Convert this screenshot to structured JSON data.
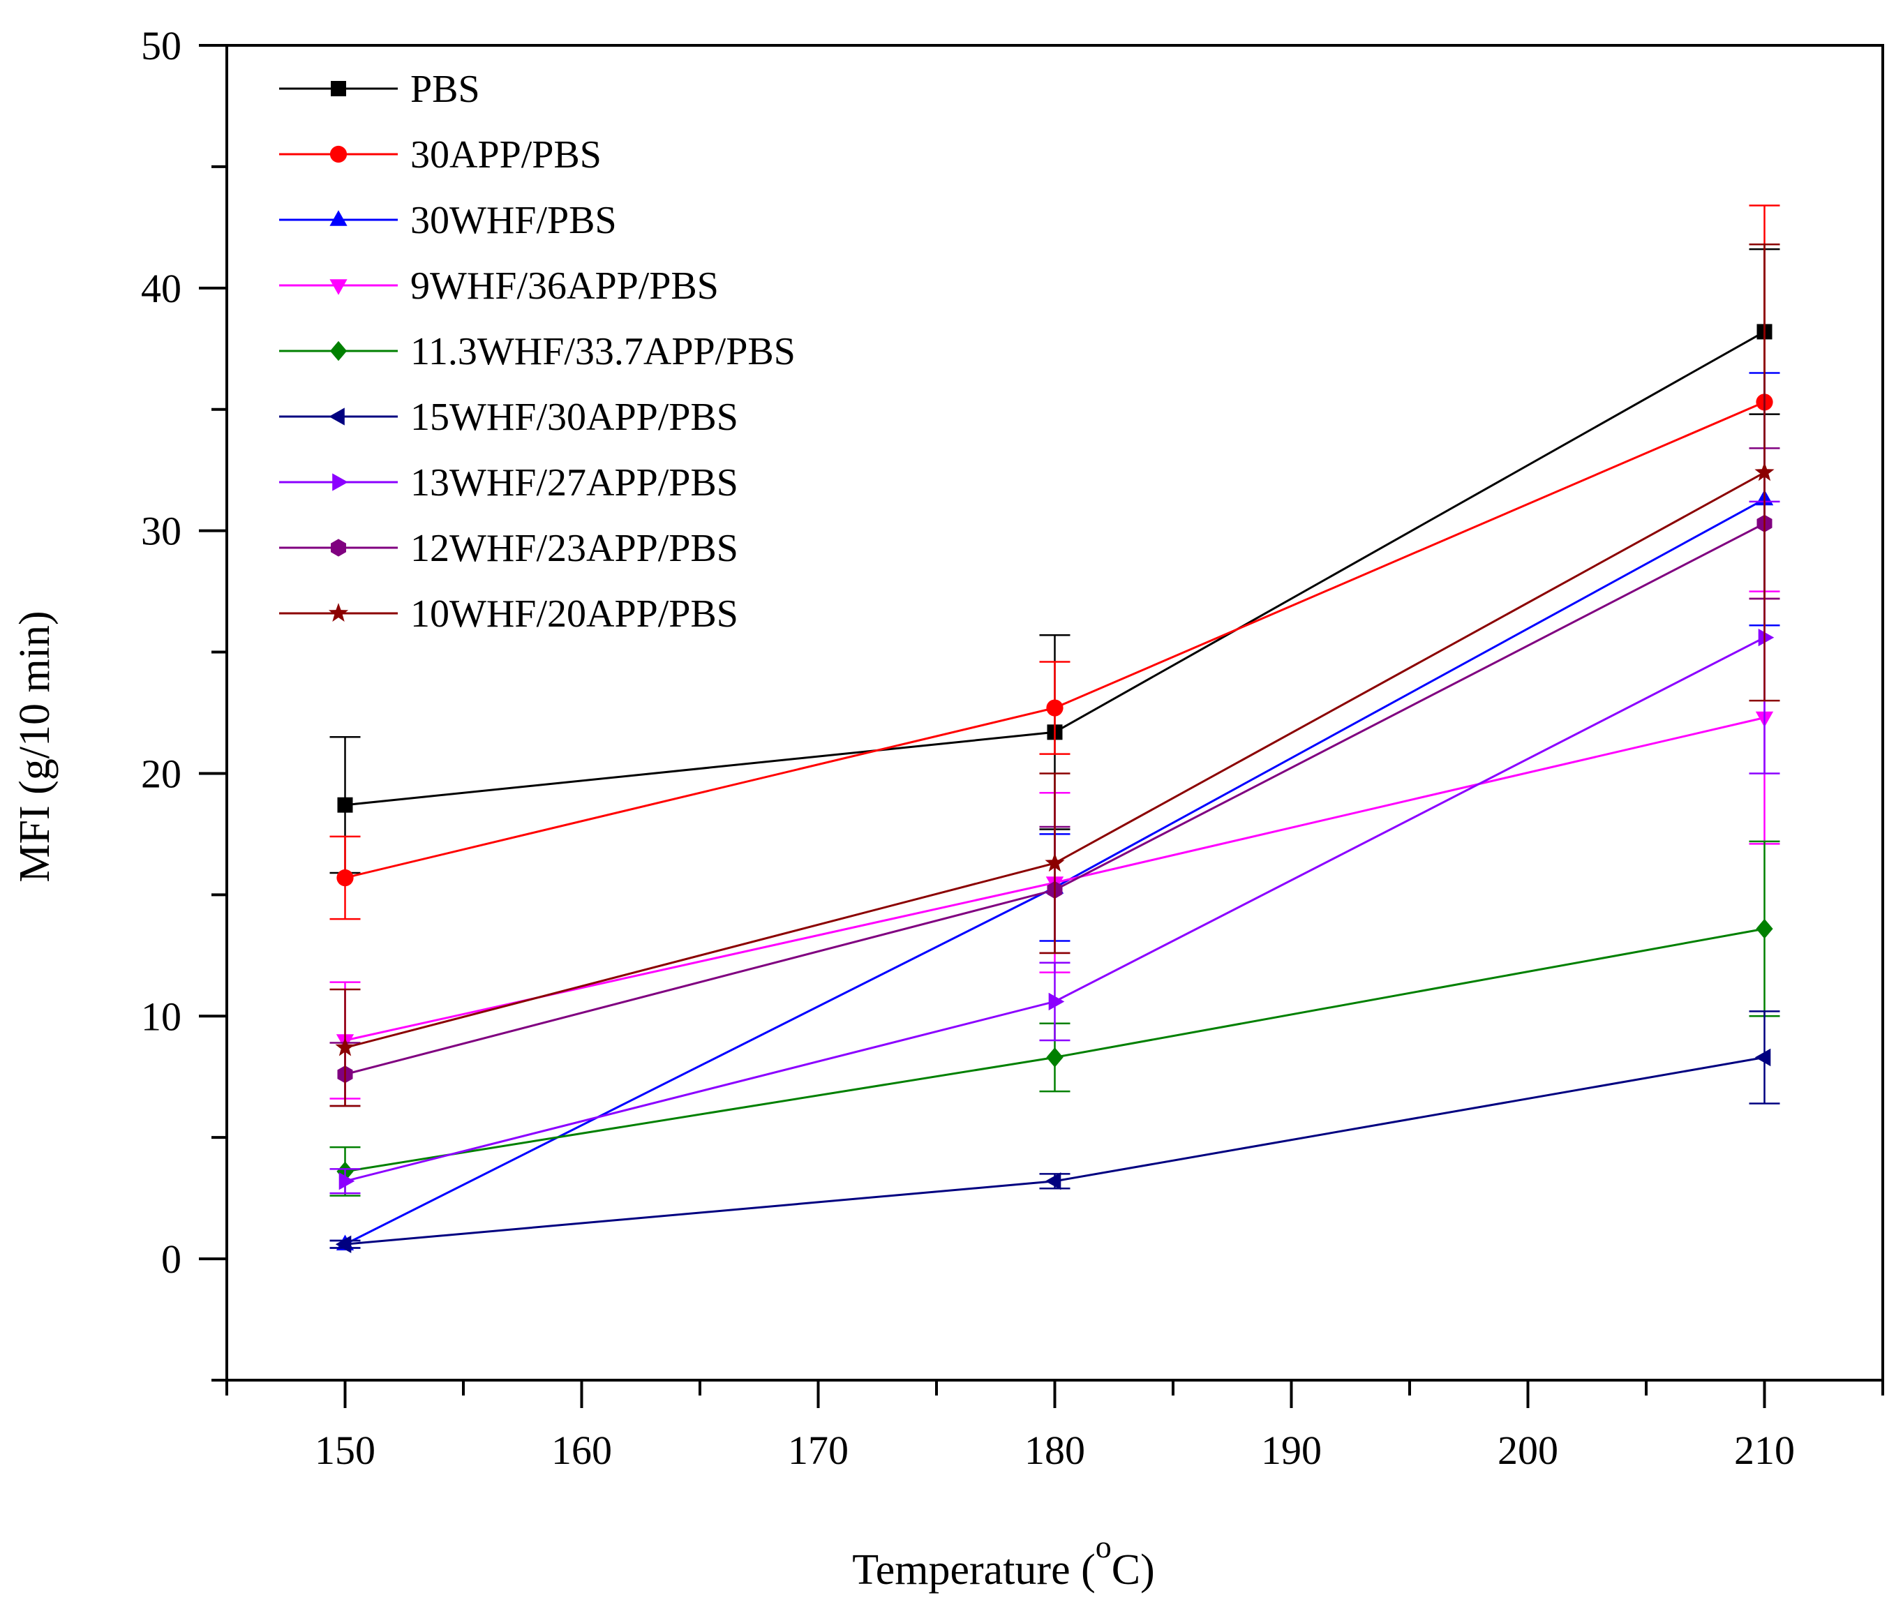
{
  "chart_data": {
    "type": "line",
    "title": "",
    "xlabel": "Temperature (",
    "xlabel_sup": "o",
    "xlabel_suffix": "C)",
    "ylabel": "MFI (g/10 min)",
    "xlim": [
      145,
      215
    ],
    "ylim": [
      -5,
      50
    ],
    "x_ticks": [
      150,
      160,
      170,
      180,
      190,
      200,
      210
    ],
    "y_ticks": [
      0,
      10,
      20,
      30,
      40,
      50
    ],
    "x_minor_step": 5,
    "y_minor_step": 5,
    "grid": false,
    "legend_position": "top-left",
    "x": [
      150,
      180,
      210
    ],
    "series": [
      {
        "name": "PBS",
        "color": "#000000",
        "marker": "square",
        "values": [
          18.7,
          21.7,
          38.2
        ],
        "errors": [
          2.8,
          4.0,
          3.4
        ]
      },
      {
        "name": "30APP/PBS",
        "color": "#ff0000",
        "marker": "circle",
        "values": [
          15.7,
          22.7,
          35.3
        ],
        "errors": [
          1.7,
          1.9,
          8.1
        ]
      },
      {
        "name": "30WHF/PBS",
        "color": "#0000ff",
        "marker": "triangle-up",
        "values": [
          0.6,
          15.3,
          31.3
        ],
        "errors": [
          0.15,
          2.2,
          5.2
        ]
      },
      {
        "name": "9WHF/36APP/PBS",
        "color": "#ff00ff",
        "marker": "triangle-down",
        "values": [
          9.0,
          15.5,
          22.3
        ],
        "errors": [
          2.4,
          3.7,
          5.2
        ]
      },
      {
        "name": "11.3WHF/33.7APP/PBS",
        "color": "#008000",
        "marker": "diamond",
        "values": [
          3.6,
          8.3,
          13.6
        ],
        "errors": [
          1.0,
          1.4,
          3.6
        ]
      },
      {
        "name": "15WHF/30APP/PBS",
        "color": "#000080",
        "marker": "triangle-left",
        "values": [
          0.6,
          3.2,
          8.3
        ],
        "errors": [
          0.15,
          0.3,
          1.9
        ]
      },
      {
        "name": "13WHF/27APP/PBS",
        "color": "#8b00ff",
        "marker": "triangle-right",
        "values": [
          3.2,
          10.6,
          25.6
        ],
        "errors": [
          0.5,
          1.6,
          5.6
        ]
      },
      {
        "name": "12WHF/23APP/PBS",
        "color": "#800080",
        "marker": "hexagon",
        "values": [
          7.6,
          15.2,
          30.3
        ],
        "errors": [
          1.3,
          2.6,
          3.1
        ]
      },
      {
        "name": "10WHF/20APP/PBS",
        "color": "#8b0000",
        "marker": "star",
        "values": [
          8.7,
          16.3,
          32.4
        ],
        "errors": [
          2.4,
          3.7,
          9.4
        ]
      }
    ]
  }
}
